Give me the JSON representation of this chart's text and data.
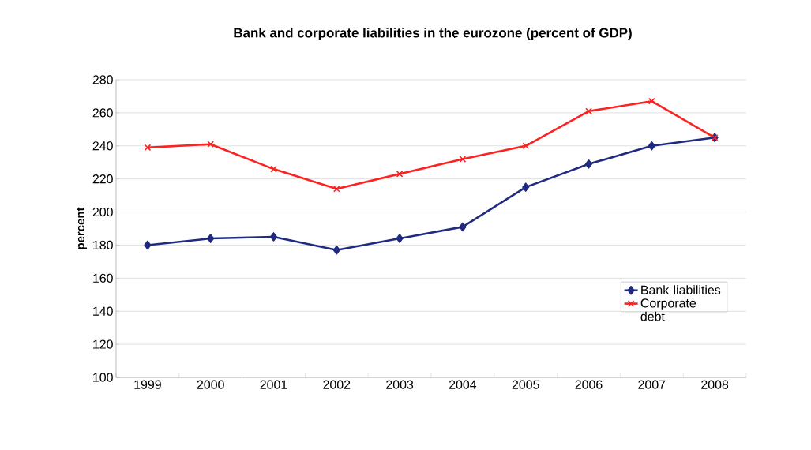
{
  "chart_data": {
    "type": "line",
    "title": "Bank and corporate liabilities in the eurozone (percent of GDP)",
    "ylabel": "percent",
    "categories": [
      "1999",
      "2000",
      "2001",
      "2002",
      "2003",
      "2004",
      "2005",
      "2006",
      "2007",
      "2008"
    ],
    "series": [
      {
        "name": "Bank liabilities",
        "color": "#1f2a80",
        "marker": "diamond",
        "values": [
          180,
          184,
          185,
          177,
          184,
          191,
          215,
          229,
          240,
          245
        ]
      },
      {
        "name": "Corporate debt",
        "color": "#ff2020",
        "marker": "cross",
        "values": [
          239,
          241,
          226,
          214,
          223,
          232,
          240,
          261,
          267,
          245
        ]
      }
    ],
    "ylim": [
      100,
      280
    ],
    "yticks": [
      100,
      120,
      140,
      160,
      180,
      200,
      220,
      240,
      260,
      280
    ],
    "grid": "y",
    "legend": "right",
    "line_style": "solid"
  }
}
